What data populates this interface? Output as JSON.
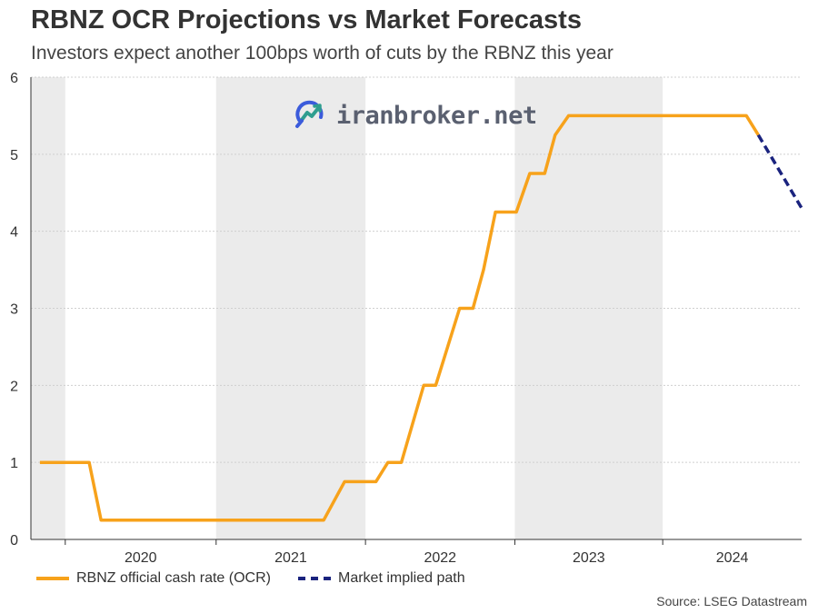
{
  "title": "RBNZ OCR Projections vs Market Forecasts",
  "subtitle": "Investors expect another 100bps worth of cuts by the RBNZ this year",
  "source": "Source: LSEG Datastream",
  "watermark": "iranbroker.net",
  "chart_data": {
    "type": "line",
    "title": "RBNZ OCR Projections vs Market Forecasts",
    "subtitle": "Investors expect another 100bps worth of cuts by the RBNZ this year",
    "xlabel": "",
    "ylabel": "",
    "xlim": [
      2019.02,
      2024.18
    ],
    "ylim": [
      0,
      6
    ],
    "yticks": [
      0,
      1,
      2,
      3,
      4,
      5,
      6
    ],
    "xtick_labels": [
      "2020",
      "2021",
      "2022",
      "2023",
      "2024"
    ],
    "year_bands": [
      {
        "start": 2019.02,
        "end": 2019.25,
        "shaded": true
      },
      {
        "start": 2019.25,
        "end": 2020.26,
        "shaded": false
      },
      {
        "start": 2020.26,
        "end": 2021.26,
        "shaded": true
      },
      {
        "start": 2021.26,
        "end": 2022.26,
        "shaded": false
      },
      {
        "start": 2022.26,
        "end": 2023.25,
        "shaded": true
      },
      {
        "start": 2023.25,
        "end": 2024.18,
        "shaded": false
      }
    ],
    "grid": true,
    "legend_position": "bottom",
    "series": [
      {
        "name": "RBNZ official cash rate (OCR)",
        "color": "#f7a21b",
        "style": "solid",
        "points": [
          [
            2019.08,
            1.0
          ],
          [
            2019.41,
            1.0
          ],
          [
            2019.49,
            0.25
          ],
          [
            2020.98,
            0.25
          ],
          [
            2021.12,
            0.75
          ],
          [
            2021.33,
            0.75
          ],
          [
            2021.41,
            1.0
          ],
          [
            2021.5,
            1.0
          ],
          [
            2021.65,
            2.0
          ],
          [
            2021.73,
            2.0
          ],
          [
            2021.89,
            3.0
          ],
          [
            2021.98,
            3.0
          ],
          [
            2022.05,
            3.5
          ],
          [
            2022.13,
            4.25
          ],
          [
            2022.27,
            4.25
          ],
          [
            2022.36,
            4.75
          ],
          [
            2022.46,
            4.75
          ],
          [
            2022.53,
            5.25
          ],
          [
            2022.62,
            5.5
          ],
          [
            2023.81,
            5.5
          ],
          [
            2023.89,
            5.25
          ]
        ]
      },
      {
        "name": "Market implied path",
        "color": "#1a237e",
        "style": "dashed",
        "points": [
          [
            2023.89,
            5.25
          ],
          [
            2024.18,
            4.3
          ]
        ]
      }
    ]
  }
}
